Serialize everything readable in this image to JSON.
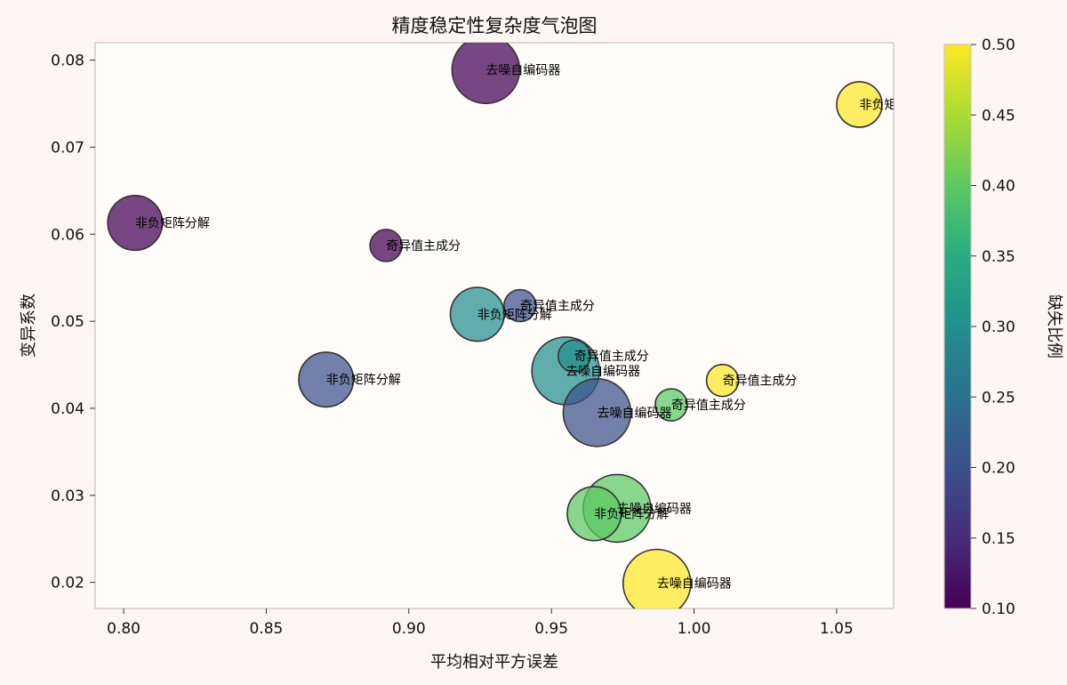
{
  "chart_data": {
    "type": "scatter",
    "title": "精度稳定性复杂度气泡图",
    "xlabel": "平均相对平方误差",
    "ylabel": "变异系数",
    "xlim": [
      0.79,
      1.07
    ],
    "ylim": [
      0.017,
      0.082
    ],
    "x_ticks": [
      "0.80",
      "0.85",
      "0.90",
      "0.95",
      "1.00",
      "1.05"
    ],
    "y_ticks": [
      "0.02",
      "0.03",
      "0.04",
      "0.05",
      "0.06",
      "0.07",
      "0.08"
    ],
    "colorbar": {
      "label": "缺失比例",
      "range": [
        0.1,
        0.5
      ],
      "ticks": [
        "0.10",
        "0.15",
        "0.20",
        "0.25",
        "0.30",
        "0.35",
        "0.40",
        "0.45",
        "0.50"
      ],
      "colormap": "viridis"
    },
    "grid": false,
    "points": [
      {
        "label": "去噪自编码器",
        "x": 0.927,
        "y": 0.0789,
        "missing": 0.1,
        "size": 1.0
      },
      {
        "label": "非负矩阵分解",
        "x": 1.058,
        "y": 0.0749,
        "missing": 0.5,
        "size": 0.45
      },
      {
        "label": "非负矩阵分解",
        "x": 0.804,
        "y": 0.0613,
        "missing": 0.1,
        "size": 0.68
      },
      {
        "label": "奇异值主成分",
        "x": 0.892,
        "y": 0.0587,
        "missing": 0.1,
        "size": 0.12
      },
      {
        "label": "非负矩阵分解",
        "x": 0.924,
        "y": 0.0508,
        "missing": 0.3,
        "size": 0.66
      },
      {
        "label": "奇异值主成分",
        "x": 0.939,
        "y": 0.0518,
        "missing": 0.2,
        "size": 0.12
      },
      {
        "label": "非负矩阵分解",
        "x": 0.871,
        "y": 0.0433,
        "missing": 0.2,
        "size": 0.68
      },
      {
        "label": "去噪自编码器",
        "x": 0.955,
        "y": 0.0443,
        "missing": 0.3,
        "size": 1.0
      },
      {
        "label": "奇异值主成分",
        "x": 0.958,
        "y": 0.046,
        "missing": 0.3,
        "size": 0.12
      },
      {
        "label": "去噪自编码器",
        "x": 0.966,
        "y": 0.0395,
        "missing": 0.2,
        "size": 1.0
      },
      {
        "label": "奇异值主成分",
        "x": 1.01,
        "y": 0.0432,
        "missing": 0.5,
        "size": 0.12
      },
      {
        "label": "奇异值主成分",
        "x": 0.992,
        "y": 0.0404,
        "missing": 0.4,
        "size": 0.12
      },
      {
        "label": "去噪自编码器",
        "x": 0.973,
        "y": 0.0285,
        "missing": 0.4,
        "size": 1.0
      },
      {
        "label": "非负矩阵分解",
        "x": 0.965,
        "y": 0.0279,
        "missing": 0.4,
        "size": 0.66
      },
      {
        "label": "去噪自编码器",
        "x": 0.987,
        "y": 0.0199,
        "missing": 0.5,
        "size": 1.0
      }
    ]
  }
}
